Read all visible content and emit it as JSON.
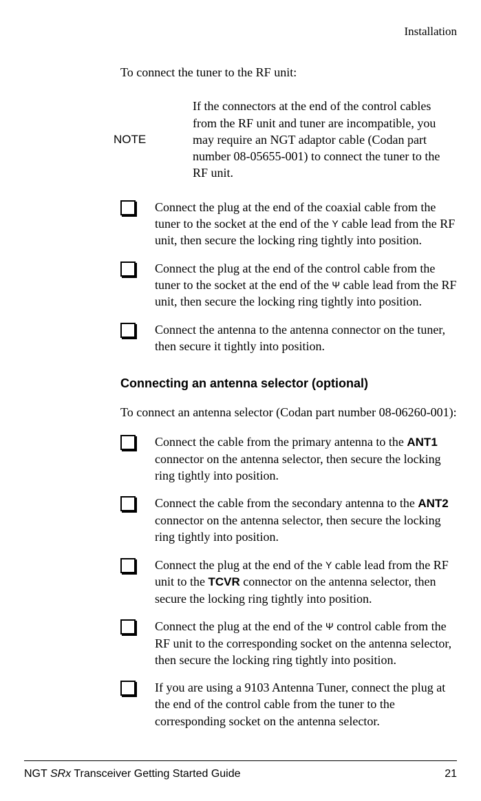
{
  "header": {
    "section_title": "Installation"
  },
  "tuner_section": {
    "intro": "To connect the tuner to the RF unit:",
    "note": {
      "label": "NOTE",
      "body": "If the connectors at the end of the control cables from the RF unit and tuner are incompatible, you may require an NGT adaptor cable (Codan part number 08-05655-001) to connect the tuner to the RF unit."
    },
    "steps": [
      {
        "pre": "Connect the plug at the end of the coaxial cable from the tuner to the socket at the end of the ",
        "icon": "Y",
        "post": " cable lead from the RF unit, then secure the locking ring tightly into position."
      },
      {
        "pre": "Connect the plug at the end of the control cable from the tuner to the socket at the end of the ",
        "icon": "Ψ",
        "post": " cable lead from the RF unit, then secure the locking ring tightly into position."
      },
      {
        "pre": "Connect the antenna to the antenna connector on the tuner, then secure it tightly into position.",
        "icon": "",
        "post": ""
      }
    ]
  },
  "selector_section": {
    "heading": "Connecting an antenna selector (optional)",
    "intro": "To connect an antenna selector (Codan part number 08-06260-001):",
    "steps": [
      {
        "parts": [
          {
            "t": "Connect the cable from the primary antenna to the "
          },
          {
            "b": "ANT1"
          },
          {
            "t": " connector on the antenna selector, then secure the locking ring tightly into position."
          }
        ]
      },
      {
        "parts": [
          {
            "t": "Connect the cable from the secondary antenna to the "
          },
          {
            "b": "ANT2"
          },
          {
            "t": " connector on the antenna selector, then secure the locking ring tightly into position."
          }
        ]
      },
      {
        "parts": [
          {
            "t": "Connect the plug at the end of the "
          },
          {
            "i": "Y"
          },
          {
            "t": " cable lead from the RF unit to the "
          },
          {
            "b": "TCVR"
          },
          {
            "t": " connector on the antenna selector, then secure the locking ring tightly into position."
          }
        ]
      },
      {
        "parts": [
          {
            "t": "Connect the plug at the end of the "
          },
          {
            "i": "Ψ"
          },
          {
            "t": " control cable from the RF unit to the corresponding socket on the antenna selector, then secure the locking ring tightly into position."
          }
        ]
      },
      {
        "parts": [
          {
            "t": "If you are using a 9103 Antenna Tuner, connect the plug at the end of the control cable from the tuner to the corresponding socket on the antenna selector."
          }
        ]
      }
    ]
  },
  "footer": {
    "doc_prefix": "NGT ",
    "doc_italic": "SRx",
    "doc_suffix": " Transceiver Getting Started Guide",
    "page_number": "21"
  },
  "colors": {
    "text": "#000000",
    "background": "#ffffff",
    "border": "#000000"
  },
  "typography": {
    "body_family": "Times New Roman",
    "label_family": "Arial",
    "body_size": 18,
    "heading_size": 18,
    "note_label_size": 17,
    "footer_size": 16
  }
}
